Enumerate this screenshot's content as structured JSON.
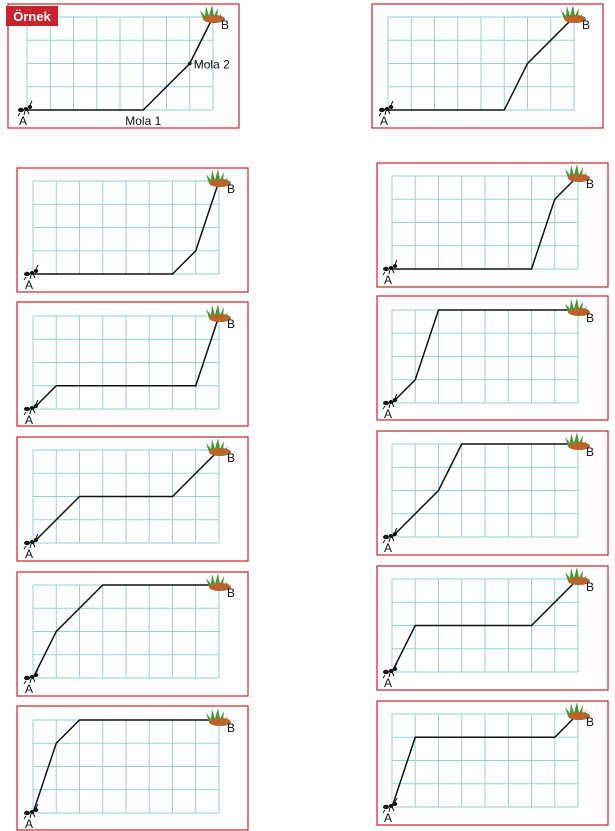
{
  "badge": "Örnek",
  "example": {
    "break_1": "Mola 1",
    "break_2": "Mola 2"
  },
  "panels": [
    {
      "start": "A",
      "end": "B"
    },
    {
      "start": "A",
      "end": "B"
    },
    {
      "start": "A",
      "end": "B"
    },
    {
      "start": "A",
      "end": "B"
    },
    {
      "start": "A",
      "end": "B"
    },
    {
      "start": "A",
      "end": "B"
    },
    {
      "start": "A",
      "end": "B"
    },
    {
      "start": "A",
      "end": "B"
    },
    {
      "start": "A",
      "end": "B"
    },
    {
      "start": "A",
      "end": "B"
    },
    {
      "start": "A",
      "end": "B"
    },
    {
      "start": "A",
      "end": "B"
    }
  ]
}
